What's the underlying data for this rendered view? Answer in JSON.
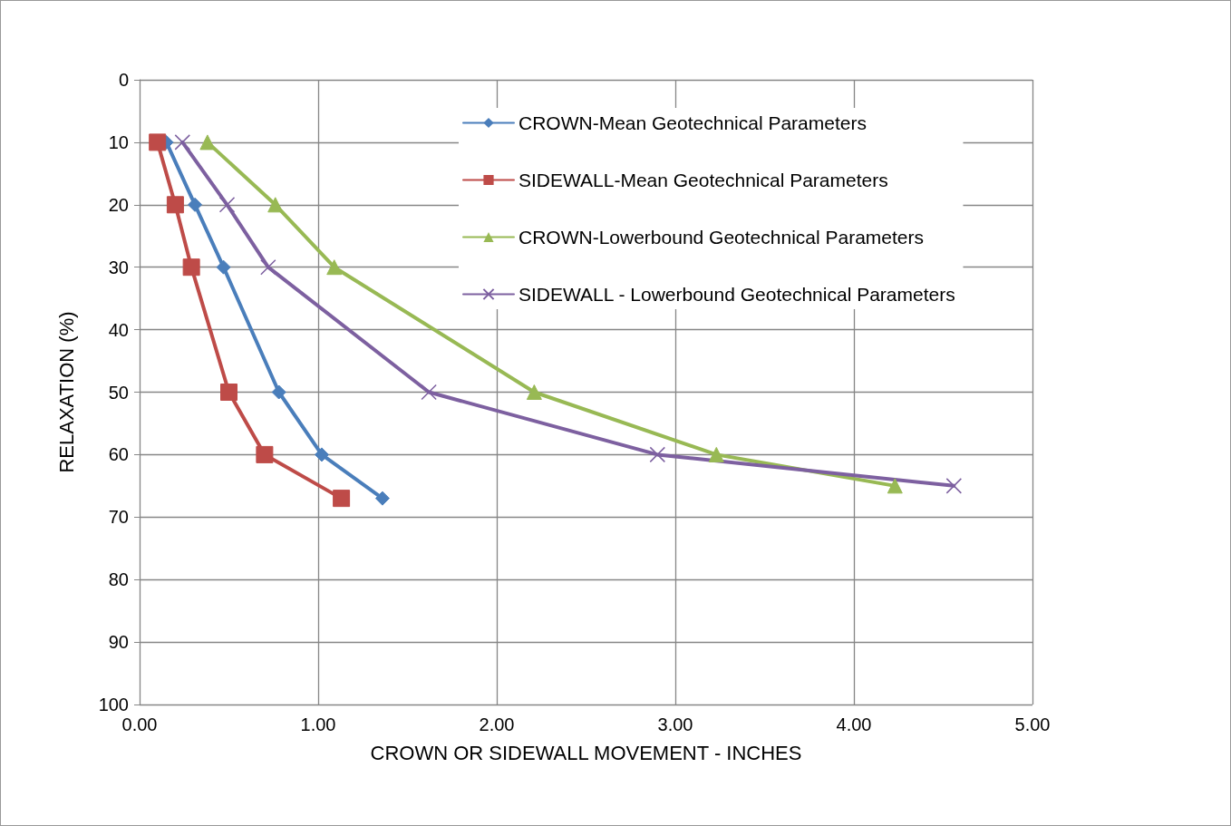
{
  "chart_data": {
    "type": "line",
    "xlabel": "CROWN OR SIDEWALL MOVEMENT - INCHES",
    "ylabel": "RELAXATION (%)",
    "xlim": [
      0,
      5
    ],
    "xticks": [
      {
        "value": 0,
        "label": "0.00"
      },
      {
        "value": 1,
        "label": "1.00"
      },
      {
        "value": 2,
        "label": "2.00"
      },
      {
        "value": 3,
        "label": "3.00"
      },
      {
        "value": 4,
        "label": "4.00"
      },
      {
        "value": 5,
        "label": "5.00"
      }
    ],
    "ylim": [
      100,
      0
    ],
    "yticks": [
      0,
      10,
      20,
      30,
      40,
      50,
      60,
      70,
      80,
      90,
      100
    ],
    "grid": true,
    "legend": "top right",
    "line_style": "solid",
    "series": [
      {
        "name": "CROWN-Mean Geotechnical Parameters",
        "color": "#4a7ebb",
        "marker": "diamond",
        "x": [
          0.15,
          0.31,
          0.47,
          0.78,
          1.02,
          1.36
        ],
        "values": [
          10,
          20,
          30,
          50,
          60,
          67
        ]
      },
      {
        "name": "SIDEWALL-Mean Geotechnical Parameters",
        "color": "#be4b48",
        "marker": "square",
        "x": [
          0.1,
          0.2,
          0.29,
          0.5,
          0.7,
          1.13
        ],
        "values": [
          10,
          20,
          30,
          50,
          60,
          67
        ]
      },
      {
        "name": "CROWN-Lowerbound Geotechnical Parameters",
        "color": "#98b954",
        "marker": "triangle",
        "x": [
          0.38,
          0.76,
          1.09,
          2.21,
          3.23,
          4.23
        ],
        "values": [
          10,
          20,
          30,
          50,
          60,
          65
        ]
      },
      {
        "name": "SIDEWALL - Lowerbound Geotechnical Parameters",
        "color": "#7d60a0",
        "marker": "cross",
        "x": [
          0.24,
          0.49,
          0.72,
          1.62,
          2.9,
          4.56
        ],
        "values": [
          10,
          20,
          30,
          50,
          60,
          65
        ]
      }
    ]
  }
}
